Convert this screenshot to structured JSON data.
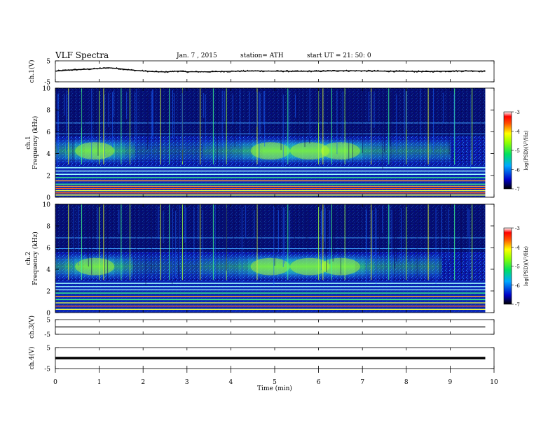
{
  "header": {
    "title": "VLF  Spectra",
    "date": "Jan. 7  , 2015",
    "station": "station= ATH",
    "start": "start  UT  =   21: 50: 0"
  },
  "chart_data": {
    "type": "heatmap",
    "xlabel": "Time  (min)",
    "xlim": [
      0,
      10
    ],
    "x_ticks": [
      "0",
      "1",
      "2",
      "3",
      "4",
      "5",
      "6",
      "7",
      "8",
      "9",
      "10"
    ],
    "data_end_min": 9.8,
    "panels": [
      {
        "id": "ch1-waveform",
        "type": "line",
        "ylabel": "ch.1(V)",
        "ylim": [
          -5,
          5
        ],
        "y_ticks": [
          "5",
          "-5"
        ],
        "trace": [
          [
            0.0,
            0.1
          ],
          [
            0.3,
            0.6
          ],
          [
            0.6,
            0.9
          ],
          [
            0.9,
            1.2
          ],
          [
            1.2,
            1.7
          ],
          [
            1.4,
            1.4
          ],
          [
            1.6,
            0.9
          ],
          [
            1.8,
            0.5
          ],
          [
            2.0,
            0.2
          ],
          [
            2.2,
            -0.1
          ],
          [
            2.5,
            -0.3
          ],
          [
            2.8,
            0.1
          ],
          [
            3.0,
            -0.2
          ],
          [
            3.5,
            -0.2
          ],
          [
            4.0,
            0.0
          ],
          [
            4.5,
            0.2
          ],
          [
            5.0,
            0.1
          ],
          [
            5.5,
            0.0
          ],
          [
            6.0,
            0.1
          ],
          [
            6.5,
            0.3
          ],
          [
            7.0,
            0.2
          ],
          [
            7.5,
            0.1
          ],
          [
            8.0,
            0.0
          ],
          [
            8.5,
            -0.1
          ],
          [
            9.0,
            0.1
          ],
          [
            9.5,
            0.2
          ],
          [
            9.8,
            0.0
          ]
        ]
      },
      {
        "id": "ch1-spectrogram",
        "type": "heatmap",
        "ylabel": "ch.1\nFrequency  (kHz)",
        "ylim": [
          0,
          10
        ],
        "y_ticks": [
          "0",
          "2",
          "4",
          "6",
          "8",
          "10"
        ],
        "features": {
          "band_khz": [
            3,
            5.5
          ],
          "band_peaks_min": [
            0.9,
            4.9,
            5.8,
            6.5
          ],
          "band_end_min": 9.0,
          "horizontal_lines_khz": [
            0.2,
            0.4,
            0.6,
            0.8,
            1.0,
            1.2,
            1.5,
            1.8,
            2.1,
            2.4,
            2.7,
            5.8,
            6.8
          ],
          "spheric_times_min": [
            0.3,
            0.6,
            1.0,
            1.1,
            1.5,
            1.7,
            2.4,
            2.6,
            2.9,
            3.3,
            3.6,
            3.9,
            4.6,
            5.3,
            6.0,
            6.1,
            6.3,
            6.6,
            7.2,
            7.6,
            8.0,
            8.5,
            9.1,
            9.5
          ]
        }
      },
      {
        "id": "ch2-spectrogram",
        "type": "heatmap",
        "ylabel": "ch.2\nFrequency  (kHz)",
        "ylim": [
          0,
          10
        ],
        "y_ticks": [
          "0",
          "2",
          "4",
          "6",
          "8",
          "10"
        ],
        "features": {
          "band_khz": [
            3,
            5.5
          ],
          "band_peaks_min": [
            0.9,
            4.9,
            5.8,
            6.5
          ],
          "band_end_min": 8.8,
          "horizontal_lines_khz": [
            0.3,
            0.6,
            0.9,
            1.2,
            1.5,
            1.8,
            2.1,
            2.4,
            2.7,
            5.9,
            6.9
          ],
          "spheric_times_min": [
            0.3,
            0.6,
            1.0,
            1.1,
            1.5,
            1.7,
            2.4,
            2.6,
            2.9,
            3.3,
            3.6,
            3.9,
            4.6,
            5.3,
            6.0,
            6.1,
            6.3,
            6.6,
            7.2,
            7.6,
            8.0,
            8.5,
            9.1,
            9.5
          ]
        }
      },
      {
        "id": "ch3-waveform",
        "type": "line",
        "ylabel": "ch.3(V)",
        "ylim": [
          -5,
          5
        ],
        "y_ticks": [
          "5",
          "-5"
        ],
        "trace": [
          [
            0.0,
            0.0
          ],
          [
            9.8,
            0.0
          ]
        ]
      },
      {
        "id": "ch4-waveform",
        "type": "line",
        "ylabel": "ch.4(V)",
        "ylim": [
          -5,
          5
        ],
        "y_ticks": [
          "5",
          "-5"
        ],
        "trace": [
          [
            0.0,
            0.0
          ],
          [
            9.8,
            0.0
          ]
        ]
      }
    ],
    "colorbar": {
      "label": "log(PSD)(V²/Hz)",
      "range": [
        -7,
        -3
      ],
      "ticks": [
        "-3",
        "-4",
        "-5",
        "-6",
        "-7"
      ]
    }
  }
}
